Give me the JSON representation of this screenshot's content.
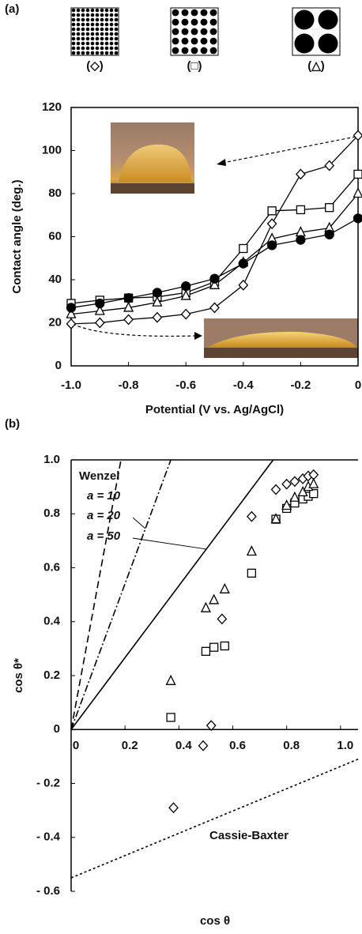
{
  "chart_data": [
    {
      "type": "line",
      "panel_label": "(a)",
      "pattern_labels": [
        "(◇)",
        "(□)",
        "(△)"
      ],
      "xlabel": "Potential (V vs. Ag/AgCl)",
      "ylabel": "Contact angle (deg.)",
      "x": [
        -1,
        -0.9,
        -0.8,
        -0.7,
        -0.6,
        -0.5,
        -0.4,
        -0.3,
        -0.2,
        -0.1,
        0
      ],
      "xlim": [
        -1,
        0
      ],
      "xticks": [
        {
          "value": -1,
          "label": "-1.0"
        },
        -0.8,
        -0.6,
        -0.4,
        -0.2,
        0
      ],
      "ylim": [
        0,
        120
      ],
      "yticks": [
        0,
        20,
        40,
        60,
        80,
        100,
        120
      ],
      "series": [
        {
          "marker": "diamond",
          "filled": false,
          "color": "#000000",
          "values": [
            19.5,
            20,
            21.5,
            22.5,
            24,
            27,
            37.5,
            66,
            89,
            93,
            107
          ]
        },
        {
          "marker": "square",
          "filled": false,
          "color": "#000000",
          "values": [
            29,
            30.5,
            31.5,
            32,
            34,
            39,
            54.5,
            72,
            72.5,
            73.5,
            89
          ]
        },
        {
          "marker": "triangle",
          "filled": false,
          "color": "#000000",
          "values": [
            24,
            25.5,
            27,
            29.5,
            32.5,
            37.5,
            48,
            59,
            62,
            64,
            80
          ]
        },
        {
          "marker": "circle",
          "filled": true,
          "color": "#000000",
          "values": [
            27,
            29,
            31.5,
            34,
            37,
            40.5,
            47.5,
            56,
            58.5,
            61,
            68.5
          ]
        }
      ]
    },
    {
      "type": "scatter",
      "panel_label": "(b)",
      "xlabel": "cos θ",
      "ylabel": "cos θ*",
      "xlim": [
        0,
        1.065
      ],
      "xticks": [
        0,
        0.2,
        0.4,
        0.6,
        0.8,
        {
          "value": 1,
          "label": "1.0"
        }
      ],
      "ylim": [
        -0.6,
        1
      ],
      "yticks": [
        {
          "value": 1,
          "label": "1.0"
        },
        0.8,
        0.6,
        0.4,
        0.2,
        0,
        {
          "value": -0.2,
          "label": "- 0.2"
        },
        {
          "value": -0.4,
          "label": "- 0.4"
        },
        {
          "value": -0.6,
          "label": "- 0.6"
        }
      ],
      "lines_label": "Wenzel",
      "lines": [
        {
          "name": "a = 10",
          "dash": "9,5",
          "x": [
            0,
            0.185
          ],
          "y": [
            0,
            1
          ]
        },
        {
          "name": "a = 20",
          "dash": "9,3,2,3",
          "x": [
            0,
            0.37
          ],
          "y": [
            0,
            1
          ]
        },
        {
          "name": "a = 50",
          "dash": "none",
          "x": [
            0,
            0.75
          ],
          "y": [
            0,
            1
          ]
        },
        {
          "name": "Cassie-Baxter",
          "dash": "3,3",
          "x": [
            0,
            1.065
          ],
          "y": [
            -0.55,
            -0.11
          ]
        }
      ],
      "series": [
        {
          "marker": "diamond",
          "filled": false,
          "color": "#000000",
          "x": [
            0.38,
            0.49,
            0.52,
            0.56,
            0.67,
            0.76,
            0.8,
            0.83,
            0.86,
            0.88,
            0.9
          ],
          "y": [
            -0.29,
            -0.06,
            0.015,
            0.41,
            0.79,
            0.89,
            0.91,
            0.92,
            0.93,
            0.94,
            0.945
          ]
        },
        {
          "marker": "square",
          "filled": false,
          "color": "#000000",
          "x": [
            0.37,
            0.5,
            0.53,
            0.57,
            0.67,
            0.76,
            0.8,
            0.83,
            0.86,
            0.88,
            0.9
          ],
          "y": [
            0.045,
            0.29,
            0.305,
            0.31,
            0.58,
            0.78,
            0.82,
            0.84,
            0.855,
            0.865,
            0.875
          ]
        },
        {
          "marker": "triangle",
          "filled": false,
          "color": "#000000",
          "x": [
            0.37,
            0.5,
            0.53,
            0.57,
            0.67,
            0.76,
            0.8,
            0.83,
            0.86,
            0.88,
            0.9
          ],
          "y": [
            0.18,
            0.45,
            0.48,
            0.52,
            0.66,
            0.78,
            0.83,
            0.86,
            0.88,
            0.9,
            0.91
          ]
        }
      ]
    }
  ]
}
